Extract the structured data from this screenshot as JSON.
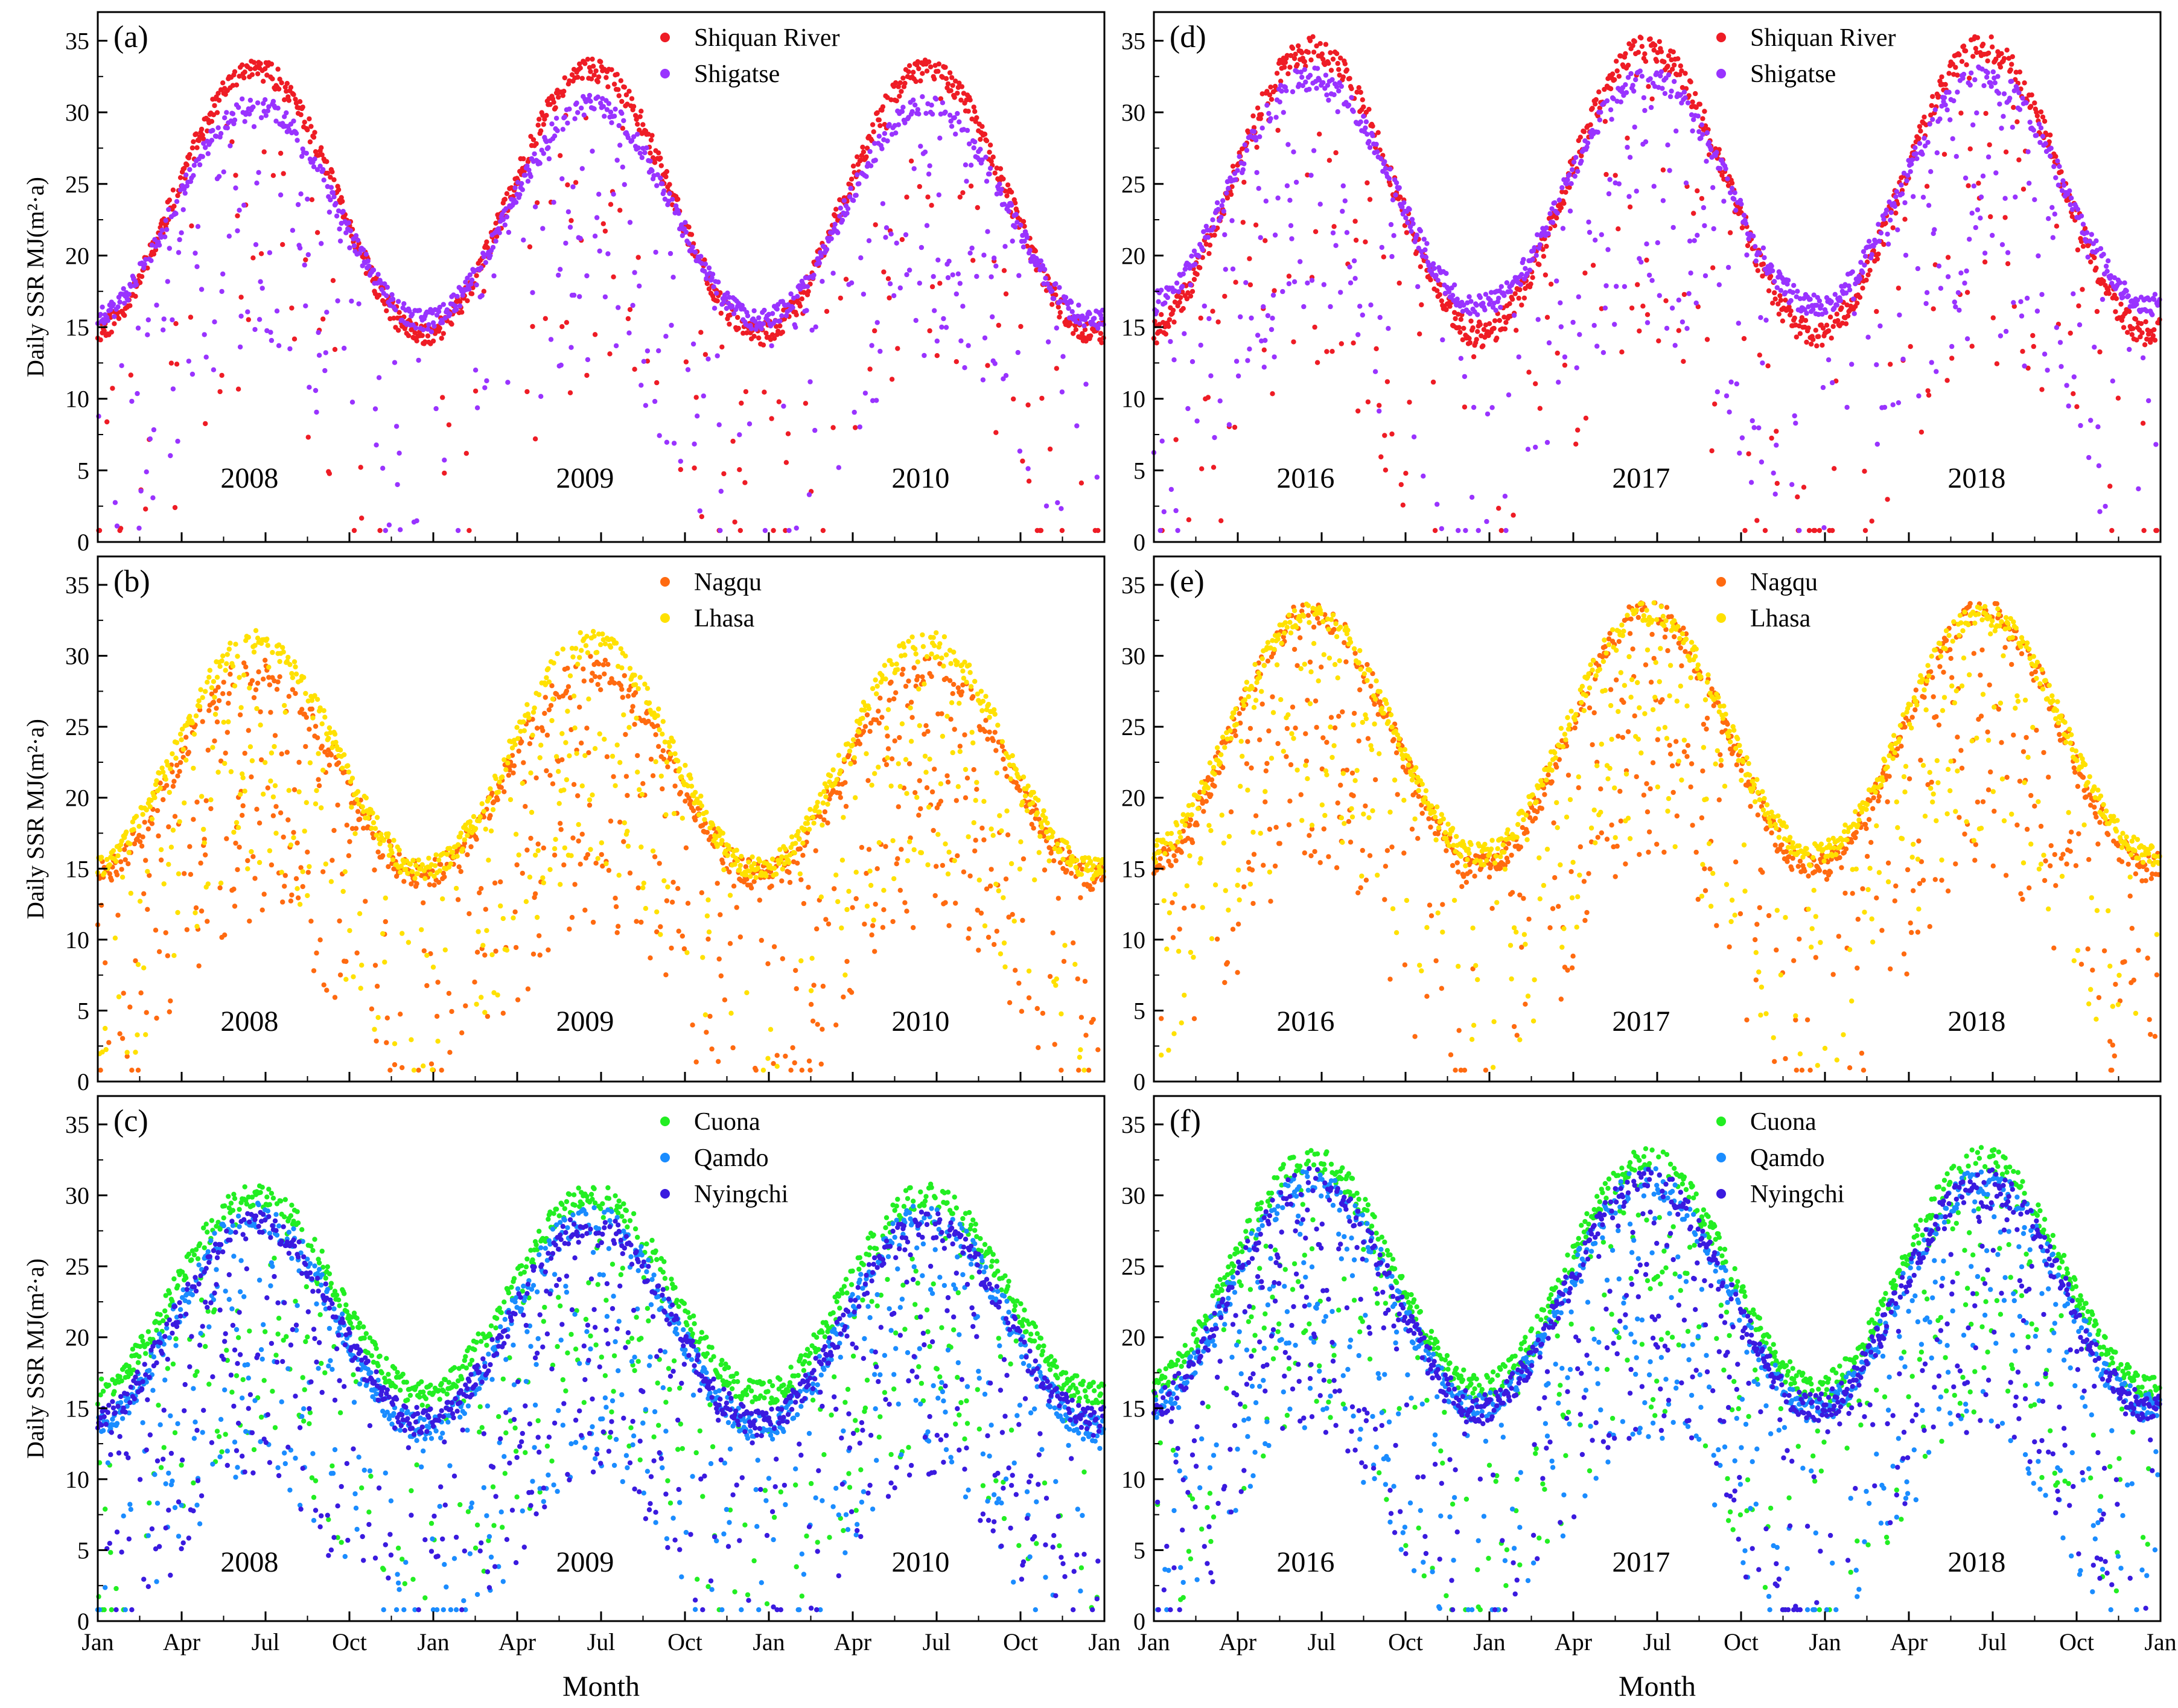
{
  "figure": {
    "x_axis_label": "Month",
    "y_axis_label": "Daily SSR MJ(m²·a)"
  },
  "chart_data": [
    {
      "id": "a",
      "panel_label": "(a)",
      "type": "scatter",
      "column": 0,
      "row": 0,
      "start_year": 2008,
      "years": [
        "2008",
        "2009",
        "2010"
      ],
      "x_ticks": [
        "Jan",
        "Apr",
        "Jul",
        "Oct",
        "Jan",
        "Apr",
        "Jul",
        "Oct",
        "Jan",
        "Apr",
        "Jul",
        "Oct",
        "Jan"
      ],
      "ylim": [
        0,
        37
      ],
      "y_ticks": [
        0,
        5,
        10,
        15,
        20,
        25,
        30,
        35
      ],
      "series": [
        {
          "name": "Shiquan River",
          "color": "#ee1c25",
          "base": 14.5,
          "amp": 18.5,
          "drop": 0.25,
          "dropMax": 22,
          "noise": 0.8,
          "seed": 11
        },
        {
          "name": "Shigatse",
          "color": "#9933ff",
          "base": 15.5,
          "amp": 15,
          "drop": 0.45,
          "dropMax": 18,
          "noise": 0.7,
          "seed": 12
        }
      ]
    },
    {
      "id": "b",
      "panel_label": "(b)",
      "type": "scatter",
      "column": 0,
      "row": 1,
      "start_year": 2008,
      "years": [
        "2008",
        "2009",
        "2010"
      ],
      "x_ticks": [
        "Jan",
        "Apr",
        "Jul",
        "Oct",
        "Jan",
        "Apr",
        "Jul",
        "Oct",
        "Jan",
        "Apr",
        "Jul",
        "Oct",
        "Jan"
      ],
      "ylim": [
        0,
        37
      ],
      "y_ticks": [
        0,
        5,
        10,
        15,
        20,
        25,
        30,
        35
      ],
      "series": [
        {
          "name": "Nagqu",
          "color": "#ff6a10",
          "base": 14.5,
          "amp": 14.5,
          "drop": 0.7,
          "dropMax": 18,
          "noise": 1.0,
          "seed": 21
        },
        {
          "name": "Lhasa",
          "color": "#ffe100",
          "base": 15,
          "amp": 16,
          "drop": 0.5,
          "dropMax": 16,
          "noise": 0.8,
          "seed": 22
        }
      ]
    },
    {
      "id": "c",
      "panel_label": "(c)",
      "type": "scatter",
      "column": 0,
      "row": 2,
      "start_year": 2008,
      "years": [
        "2008",
        "2009",
        "2010"
      ],
      "x_ticks": [
        "Jan",
        "Apr",
        "Jul",
        "Oct",
        "Jan",
        "Apr",
        "Jul",
        "Oct",
        "Jan",
        "Apr",
        "Jul",
        "Oct",
        "Jan"
      ],
      "ylim": [
        0,
        37
      ],
      "y_ticks": [
        0,
        5,
        10,
        15,
        20,
        25,
        30,
        35
      ],
      "series": [
        {
          "name": "Cuona",
          "color": "#22ee22",
          "base": 16,
          "amp": 14,
          "drop": 0.5,
          "dropMax": 18,
          "noise": 0.9,
          "seed": 31
        },
        {
          "name": "Qamdo",
          "color": "#1a8cff",
          "base": 13.5,
          "amp": 15,
          "drop": 0.6,
          "dropMax": 18,
          "noise": 1.0,
          "seed": 32
        },
        {
          "name": "Nyingchi",
          "color": "#3a1adf",
          "base": 14,
          "amp": 14,
          "drop": 0.6,
          "dropMax": 18,
          "noise": 1.0,
          "seed": 33
        }
      ]
    },
    {
      "id": "d",
      "panel_label": "(d)",
      "type": "scatter",
      "column": 1,
      "row": 0,
      "start_year": 2016,
      "years": [
        "2016",
        "2017",
        "2018"
      ],
      "x_ticks": [
        "Jan",
        "Apr",
        "Jul",
        "Oct",
        "Jan",
        "Apr",
        "Jul",
        "Oct",
        "Jan",
        "Apr",
        "Jul",
        "Oct",
        "Jan"
      ],
      "ylim": [
        0,
        37
      ],
      "y_ticks": [
        0,
        5,
        10,
        15,
        20,
        25,
        30,
        35
      ],
      "series": [
        {
          "name": "Shiquan River",
          "color": "#ee1c25",
          "base": 14.5,
          "amp": 20,
          "drop": 0.3,
          "dropMax": 22,
          "noise": 0.9,
          "seed": 41
        },
        {
          "name": "Shigatse",
          "color": "#9933ff",
          "base": 16.5,
          "amp": 16,
          "drop": 0.5,
          "dropMax": 18,
          "noise": 0.8,
          "seed": 42
        }
      ]
    },
    {
      "id": "e",
      "panel_label": "(e)",
      "type": "scatter",
      "column": 1,
      "row": 1,
      "start_year": 2016,
      "years": [
        "2016",
        "2017",
        "2018"
      ],
      "x_ticks": [
        "Jan",
        "Apr",
        "Jul",
        "Oct",
        "Jan",
        "Apr",
        "Jul",
        "Oct",
        "Jan",
        "Apr",
        "Jul",
        "Oct",
        "Jan"
      ],
      "ylim": [
        0,
        37
      ],
      "y_ticks": [
        0,
        5,
        10,
        15,
        20,
        25,
        30,
        35
      ],
      "series": [
        {
          "name": "Nagqu",
          "color": "#ff6a10",
          "base": 15,
          "amp": 18,
          "drop": 0.55,
          "dropMax": 18,
          "noise": 1.0,
          "seed": 51
        },
        {
          "name": "Lhasa",
          "color": "#ffe100",
          "base": 16,
          "amp": 17,
          "drop": 0.5,
          "dropMax": 16,
          "noise": 0.8,
          "seed": 52
        }
      ]
    },
    {
      "id": "f",
      "panel_label": "(f)",
      "type": "scatter",
      "column": 1,
      "row": 2,
      "start_year": 2016,
      "years": [
        "2016",
        "2017",
        "2018"
      ],
      "x_ticks": [
        "Jan",
        "Apr",
        "Jul",
        "Oct",
        "Jan",
        "Apr",
        "Jul",
        "Oct",
        "Jan",
        "Apr",
        "Jul",
        "Oct",
        "Jan"
      ],
      "ylim": [
        0,
        37
      ],
      "y_ticks": [
        0,
        5,
        10,
        15,
        20,
        25,
        30,
        35
      ],
      "series": [
        {
          "name": "Cuona",
          "color": "#22ee22",
          "base": 16.5,
          "amp": 16,
          "drop": 0.5,
          "dropMax": 18,
          "noise": 0.9,
          "seed": 61
        },
        {
          "name": "Qamdo",
          "color": "#1a8cff",
          "base": 15,
          "amp": 16,
          "drop": 0.6,
          "dropMax": 18,
          "noise": 1.0,
          "seed": 62
        },
        {
          "name": "Nyingchi",
          "color": "#3a1adf",
          "base": 15,
          "amp": 16,
          "drop": 0.6,
          "dropMax": 18,
          "noise": 1.0,
          "seed": 63
        }
      ]
    }
  ]
}
